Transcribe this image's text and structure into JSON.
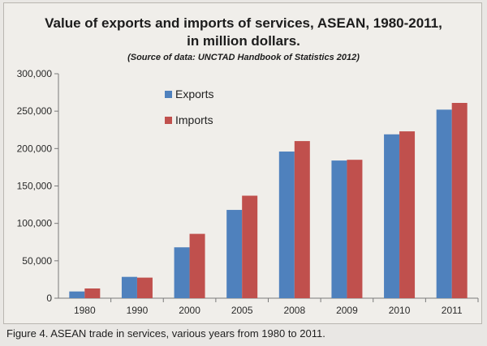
{
  "chart_data": {
    "type": "bar",
    "title": "Value of exports and imports of services, ASEAN, 1980-2011,",
    "title_line2": "in million dollars.",
    "subtitle": "(Source of data: UNCTAD Handbook of Statistics 2012)",
    "categories": [
      "1980",
      "1990",
      "2000",
      "2005",
      "2008",
      "2009",
      "2010",
      "2011"
    ],
    "series": [
      {
        "name": "Exports",
        "color": "#4f81bd",
        "values": [
          9000,
          28500,
          68000,
          118000,
          196000,
          184000,
          219000,
          252000
        ]
      },
      {
        "name": "Imports",
        "color": "#c0504d",
        "values": [
          13000,
          27500,
          86000,
          137000,
          210000,
          185000,
          223000,
          261000
        ]
      }
    ],
    "ylim": [
      0,
      300000
    ],
    "yticks": [
      0,
      50000,
      100000,
      150000,
      200000,
      250000,
      300000
    ],
    "ytick_labels": [
      "0",
      "50,000",
      "100,000",
      "150,000",
      "200,000",
      "250,000",
      "300,000"
    ],
    "xlabel": "",
    "ylabel": "",
    "grid": false,
    "legend": "top-left"
  },
  "caption": "Figure 4. ASEAN trade in services, various years from 1980 to 2011."
}
